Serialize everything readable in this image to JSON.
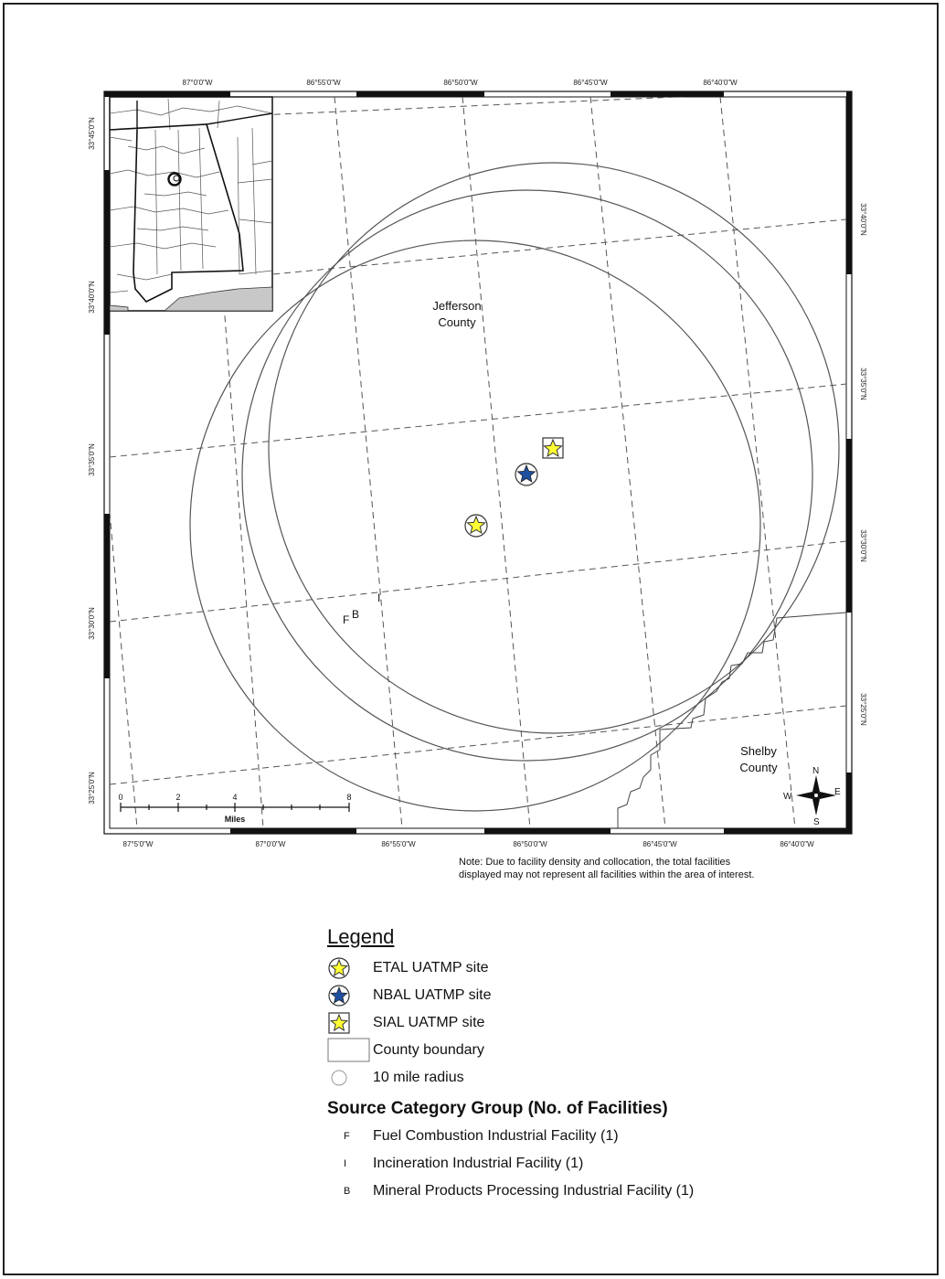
{
  "map": {
    "county_labels": [
      {
        "id": "jefferson",
        "lines": [
          "Jefferson",
          "County"
        ]
      },
      {
        "id": "shelby",
        "lines": [
          "Shelby",
          "County"
        ]
      }
    ],
    "ticks": {
      "top": [
        "87°0'0\"W",
        "86°55'0\"W",
        "86°50'0\"W",
        "86°45'0\"W",
        "86°40'0\"W"
      ],
      "bottom": [
        "87°5'0\"W",
        "87°0'0\"W",
        "86°55'0\"W",
        "86°50'0\"W",
        "86°45'0\"W",
        "86°40'0\"W"
      ],
      "left": [
        "33°45'0\"N",
        "33°40'0\"N",
        "33°35'0\"N",
        "33°30'0\"N",
        "33°25'0\"N"
      ],
      "right": [
        "33°40'0\"N",
        "33°35'0\"N",
        "33°30'0\"N",
        "33°25'0\"N"
      ]
    },
    "scale_bar": {
      "labels": [
        "0",
        "2",
        "4",
        "8"
      ],
      "unit": "Miles"
    },
    "compass": {
      "n": "N",
      "s": "S",
      "e": "E",
      "w": "W"
    },
    "facility_markers": [
      "F",
      "B",
      "I"
    ],
    "colors": {
      "yellow_star": "#ffff33",
      "blue_star": "#1f4fa0",
      "outline": "#333333"
    }
  },
  "note": {
    "line1": "Note: Due to facility density and collocation, the total facilities",
    "line2": "displayed may not represent all facilities within the area of interest."
  },
  "legend": {
    "title": "Legend",
    "items": [
      {
        "icon": "yellow-star-circle-icon",
        "label": "ETAL UATMP site"
      },
      {
        "icon": "blue-star-circle-icon",
        "label": "NBAL UATMP site"
      },
      {
        "icon": "yellow-star-square-icon",
        "label": "SIAL UATMP site"
      },
      {
        "icon": "county-boundary-box-icon",
        "label": "County boundary"
      },
      {
        "icon": "radius-circle-icon",
        "label": "10 mile radius"
      }
    ],
    "source_title": "Source Category Group (No. of Facilities)",
    "sources": [
      {
        "code": "F",
        "label": "Fuel Combustion Industrial Facility (1)"
      },
      {
        "code": "I",
        "label": "Incineration Industrial Facility (1)"
      },
      {
        "code": "B",
        "label": "Mineral Products Processing Industrial Facility (1)"
      }
    ]
  }
}
